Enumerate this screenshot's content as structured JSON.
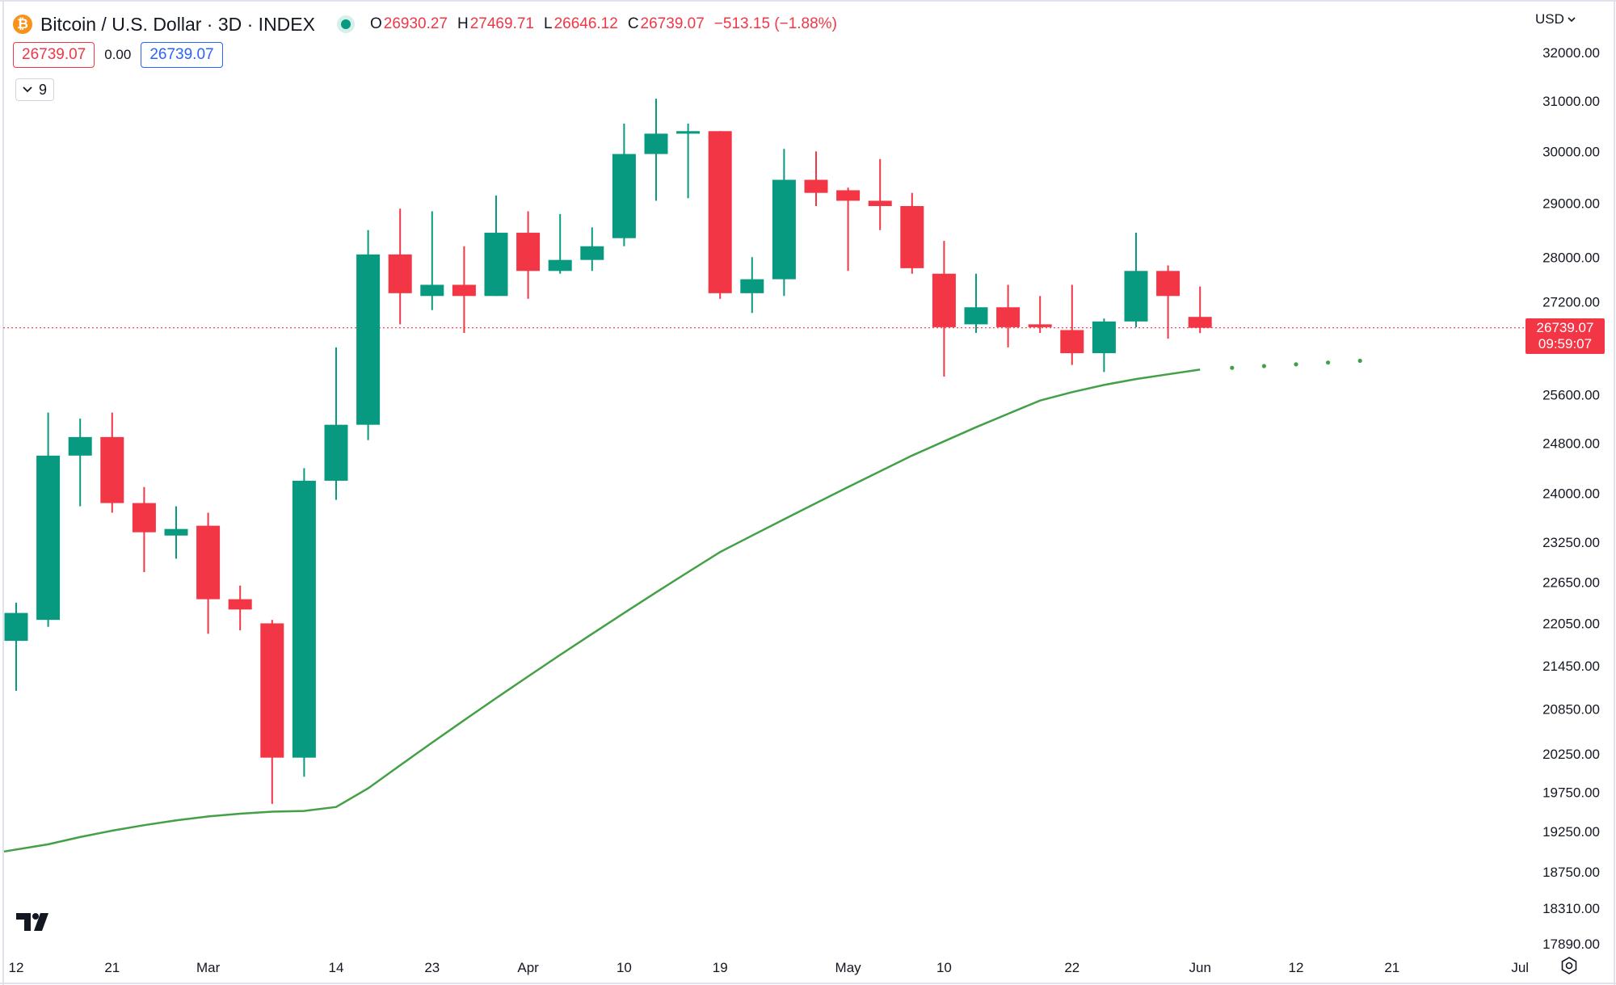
{
  "header": {
    "symbol": "Bitcoin / U.S. Dollar · 3D · INDEX",
    "ohlc": {
      "open_label": "O",
      "open": "26930.27",
      "high_label": "H",
      "high": "27469.71",
      "low_label": "L",
      "low": "26646.12",
      "close_label": "C",
      "close": "26739.07",
      "change": "−513.15 (−1.88%)"
    },
    "bid": "26739.07",
    "spread": "0.00",
    "ask": "26739.07",
    "indicators_count": "9",
    "currency": "USD"
  },
  "price_tag": {
    "price": "26739.07",
    "countdown": "09:59:07"
  },
  "colors": {
    "up": "#089981",
    "down": "#f23645",
    "ma": "#43a047",
    "grid_text": "#131722"
  },
  "icons": [
    "bitcoin-icon",
    "chevron-down-icon",
    "tradingview-logo",
    "settings-icon"
  ],
  "chart_data": {
    "type": "candlestick",
    "timeframe": "3D",
    "y_scale": "log",
    "y_ticks": [
      32000,
      31000,
      30000,
      29000,
      28000,
      27200,
      25600,
      24800,
      24000,
      23250,
      22650,
      22050,
      21450,
      20850,
      20250,
      19750,
      19250,
      18750,
      18310,
      17890
    ],
    "y_tick_labels": [
      "32000.00",
      "31000.00",
      "30000.00",
      "29000.00",
      "28000.00",
      "27200.00",
      "25600.00",
      "24800.00",
      "24000.00",
      "23250.00",
      "22650.00",
      "22050.00",
      "21450.00",
      "20850.00",
      "20250.00",
      "19750.00",
      "19250.00",
      "18750.00",
      "18310.00",
      "17890.00"
    ],
    "x_ticks": [
      {
        "label": "12",
        "date": "2023-02-12"
      },
      {
        "label": "21",
        "date": "2023-02-21"
      },
      {
        "label": "Mar",
        "date": "2023-03-02"
      },
      {
        "label": "14",
        "date": "2023-03-14"
      },
      {
        "label": "23",
        "date": "2023-03-23"
      },
      {
        "label": "Apr",
        "date": "2023-04-01"
      },
      {
        "label": "10",
        "date": "2023-04-10"
      },
      {
        "label": "19",
        "date": "2023-04-19"
      },
      {
        "label": "May",
        "date": "2023-05-01"
      },
      {
        "label": "10",
        "date": "2023-05-10"
      },
      {
        "label": "22",
        "date": "2023-05-22"
      },
      {
        "label": "Jun",
        "date": "2023-06-03"
      },
      {
        "label": "12",
        "date": "2023-06-12"
      },
      {
        "label": "21",
        "date": "2023-06-21"
      },
      {
        "label": "Jul",
        "date": "2023-07-03"
      }
    ],
    "candles": [
      {
        "date": "2023-02-12",
        "o": 21800,
        "h": 22350,
        "l": 21100,
        "c": 22200
      },
      {
        "date": "2023-02-15",
        "o": 22100,
        "h": 25300,
        "l": 22000,
        "c": 24600
      },
      {
        "date": "2023-02-18",
        "o": 24600,
        "h": 25200,
        "l": 23800,
        "c": 24900
      },
      {
        "date": "2023-02-21",
        "o": 24900,
        "h": 25300,
        "l": 23700,
        "c": 23850
      },
      {
        "date": "2023-02-24",
        "o": 23850,
        "h": 24100,
        "l": 22800,
        "c": 23400
      },
      {
        "date": "2023-02-27",
        "o": 23350,
        "h": 23800,
        "l": 23000,
        "c": 23450
      },
      {
        "date": "2023-03-02",
        "o": 23500,
        "h": 23700,
        "l": 21900,
        "c": 22400
      },
      {
        "date": "2023-03-05",
        "o": 22400,
        "h": 22600,
        "l": 21950,
        "c": 22250
      },
      {
        "date": "2023-03-08",
        "o": 22050,
        "h": 22100,
        "l": 19600,
        "c": 20200
      },
      {
        "date": "2023-03-11",
        "o": 20200,
        "h": 24400,
        "l": 19950,
        "c": 24200
      },
      {
        "date": "2023-03-14",
        "o": 24200,
        "h": 26400,
        "l": 23900,
        "c": 25100
      },
      {
        "date": "2023-03-17",
        "o": 25100,
        "h": 28500,
        "l": 24850,
        "c": 28050
      },
      {
        "date": "2023-03-20",
        "o": 28050,
        "h": 28900,
        "l": 26800,
        "c": 27350
      },
      {
        "date": "2023-03-23",
        "o": 27300,
        "h": 28850,
        "l": 27050,
        "c": 27500
      },
      {
        "date": "2023-03-26",
        "o": 27500,
        "h": 28200,
        "l": 26650,
        "c": 27300
      },
      {
        "date": "2023-03-29",
        "o": 27300,
        "h": 29150,
        "l": 27300,
        "c": 28450
      },
      {
        "date": "2023-04-01",
        "o": 28450,
        "h": 28850,
        "l": 27250,
        "c": 27750
      },
      {
        "date": "2023-04-04",
        "o": 27750,
        "h": 28800,
        "l": 27700,
        "c": 27950
      },
      {
        "date": "2023-04-07",
        "o": 27950,
        "h": 28550,
        "l": 27750,
        "c": 28200
      },
      {
        "date": "2023-04-10",
        "o": 28350,
        "h": 30550,
        "l": 28200,
        "c": 29950
      },
      {
        "date": "2023-04-13",
        "o": 29950,
        "h": 31050,
        "l": 29050,
        "c": 30350
      },
      {
        "date": "2023-04-16",
        "o": 30350,
        "h": 30550,
        "l": 29100,
        "c": 30400
      },
      {
        "date": "2023-04-19",
        "o": 30400,
        "h": 30400,
        "l": 27250,
        "c": 27350
      },
      {
        "date": "2023-04-22",
        "o": 27350,
        "h": 28000,
        "l": 27000,
        "c": 27600
      },
      {
        "date": "2023-04-25",
        "o": 27600,
        "h": 30050,
        "l": 27300,
        "c": 29450
      },
      {
        "date": "2023-04-28",
        "o": 29450,
        "h": 30000,
        "l": 28950,
        "c": 29200
      },
      {
        "date": "2023-05-01",
        "o": 29250,
        "h": 29300,
        "l": 27750,
        "c": 29050
      },
      {
        "date": "2023-05-04",
        "o": 29050,
        "h": 29850,
        "l": 28500,
        "c": 28950
      },
      {
        "date": "2023-05-07",
        "o": 28950,
        "h": 29200,
        "l": 27700,
        "c": 27800
      },
      {
        "date": "2023-05-10",
        "o": 27700,
        "h": 28300,
        "l": 25900,
        "c": 26750
      },
      {
        "date": "2023-05-13",
        "o": 26800,
        "h": 27700,
        "l": 26650,
        "c": 27100
      },
      {
        "date": "2023-05-16",
        "o": 27100,
        "h": 27500,
        "l": 26400,
        "c": 26750
      },
      {
        "date": "2023-05-19",
        "o": 26800,
        "h": 27300,
        "l": 26650,
        "c": 26750
      },
      {
        "date": "2023-05-22",
        "o": 26700,
        "h": 27500,
        "l": 26100,
        "c": 26300
      },
      {
        "date": "2023-05-25",
        "o": 26300,
        "h": 26900,
        "l": 25980,
        "c": 26850
      },
      {
        "date": "2023-05-28",
        "o": 26850,
        "h": 28450,
        "l": 26750,
        "c": 27750
      },
      {
        "date": "2023-05-31",
        "o": 27750,
        "h": 27850,
        "l": 26550,
        "c": 27300
      },
      {
        "date": "2023-06-03",
        "o": 26930.27,
        "h": 27469.71,
        "l": 26646.12,
        "c": 26739.07
      }
    ],
    "ma_line": {
      "values": [
        19000,
        19090,
        19180,
        19260,
        19330,
        19390,
        19440,
        19475,
        19500,
        19510,
        19560,
        19800,
        20100,
        20400,
        20700,
        21000,
        21300,
        21600,
        21900,
        22200,
        22500,
        22800,
        23100,
        23350,
        23600,
        23850,
        24100,
        24350,
        24600,
        24830,
        25060,
        25280,
        25500,
        25640,
        25760,
        25860,
        25940,
        26020
      ],
      "projection": [
        26050,
        26080,
        26110,
        26140,
        26170
      ]
    },
    "last_price_line": 26739.07
  }
}
